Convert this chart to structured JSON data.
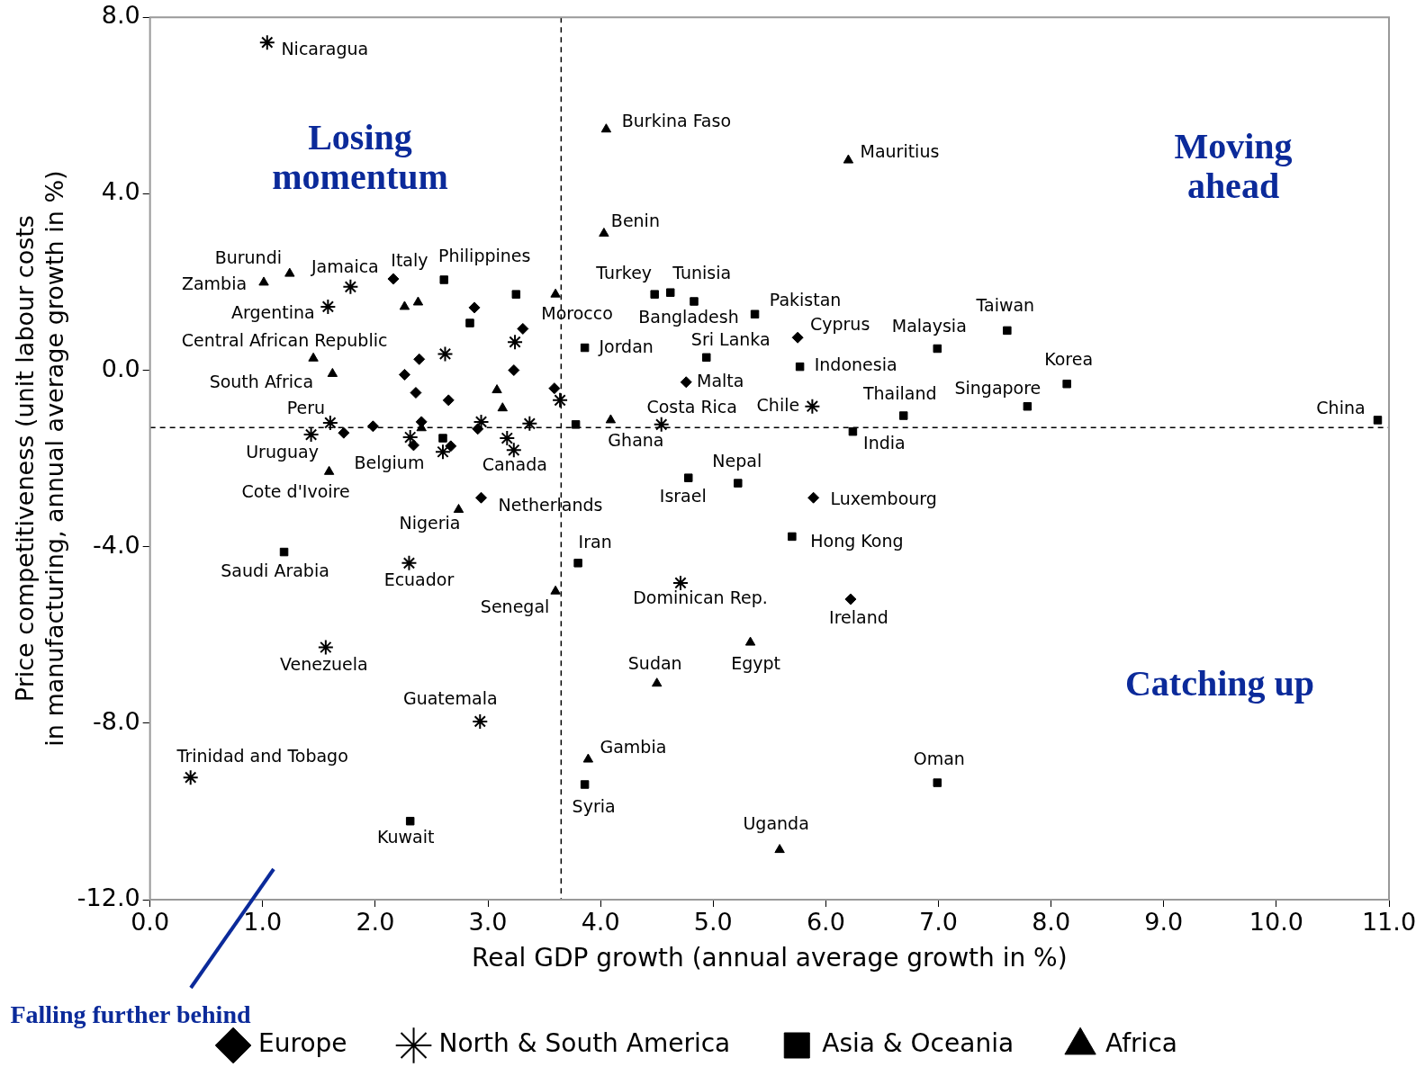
{
  "chart_data": {
    "type": "scatter",
    "xlabel": "Real GDP growth (annual average growth in %)",
    "ylabel": "Price competitiveness (unit labour costs\nin manufacturing, annual average growth in %)",
    "xlim": [
      0,
      11
    ],
    "ylim": [
      -12,
      8
    ],
    "xticks": [
      {
        "value": 0,
        "label": "0.0"
      },
      {
        "value": 1,
        "label": "1.0"
      },
      {
        "value": 2,
        "label": "2.0"
      },
      {
        "value": 3,
        "label": "3.0"
      },
      {
        "value": 4,
        "label": "4.0"
      },
      {
        "value": 5,
        "label": "5.0"
      },
      {
        "value": 6,
        "label": "6.0"
      },
      {
        "value": 7,
        "label": "7.0"
      },
      {
        "value": 8,
        "label": "8.0"
      },
      {
        "value": 9,
        "label": "9.0"
      },
      {
        "value": 10,
        "label": "10.0"
      },
      {
        "value": 11,
        "label": "11.0"
      }
    ],
    "yticks": [
      {
        "value": -12,
        "label": "-12.0"
      },
      {
        "value": -8,
        "label": "-8.0"
      },
      {
        "value": -4,
        "label": "-4.0"
      },
      {
        "value": 0,
        "label": "0.0"
      },
      {
        "value": 4,
        "label": "4.0"
      },
      {
        "value": 8,
        "label": "8.0"
      }
    ],
    "legend": "bottom",
    "grid": false,
    "ref_lines": [
      {
        "axis": "x",
        "value": 3.65,
        "label": null,
        "color": "#000000",
        "line_style": "dashed"
      },
      {
        "axis": "y",
        "value": -1.3,
        "label": null,
        "color": "#000000",
        "line_style": "dashed"
      }
    ],
    "series": [
      {
        "name": "Europe",
        "color": "#000000",
        "marker": "diamond",
        "x": [
          2.16,
          2.88,
          3.31,
          2.39,
          2.26,
          3.23,
          2.36,
          2.65,
          3.59,
          1.98,
          1.72,
          2.41,
          2.91,
          2.34,
          2.67,
          2.94,
          4.76,
          5.75,
          5.89,
          6.22
        ],
        "values": [
          2.07,
          1.42,
          0.94,
          0.25,
          -0.1,
          0.0,
          -0.51,
          -0.68,
          -0.41,
          -1.27,
          -1.42,
          -1.17,
          -1.33,
          -1.7,
          -1.72,
          -2.89,
          -0.27,
          0.74,
          -2.89,
          -5.19
        ]
      },
      {
        "name": "North & South America",
        "color": "#000000",
        "marker": "cross",
        "x": [
          1.04,
          1.78,
          1.58,
          2.62,
          3.24,
          3.64,
          1.6,
          1.43,
          2.94,
          3.37,
          3.17,
          3.23,
          2.6,
          2.31,
          4.54,
          5.88,
          2.3,
          4.71,
          1.56,
          2.93,
          0.36
        ],
        "values": [
          7.43,
          1.89,
          1.44,
          0.37,
          0.64,
          -0.68,
          -1.19,
          -1.46,
          -1.17,
          -1.21,
          -1.54,
          -1.81,
          -1.85,
          -1.52,
          -1.23,
          -0.82,
          -4.37,
          -4.82,
          -6.28,
          -7.96,
          -9.23
        ]
      },
      {
        "name": "Asia & Oceania",
        "color": "#000000",
        "marker": "square",
        "x": [
          2.61,
          3.25,
          2.84,
          4.48,
          4.62,
          4.83,
          5.37,
          3.86,
          4.94,
          5.77,
          6.99,
          7.61,
          8.14,
          7.79,
          6.69,
          6.24,
          10.9,
          3.78,
          2.6,
          4.78,
          5.22,
          5.7,
          3.8,
          1.19,
          6.99,
          3.86,
          2.31
        ],
        "values": [
          2.05,
          1.72,
          1.07,
          1.72,
          1.76,
          1.56,
          1.27,
          0.51,
          0.29,
          0.08,
          0.49,
          0.9,
          -0.31,
          -0.82,
          -1.03,
          -1.39,
          -1.13,
          -1.23,
          -1.54,
          -2.44,
          -2.56,
          -3.77,
          -4.37,
          -4.12,
          -9.35,
          -9.39,
          -10.22
        ]
      },
      {
        "name": "Africa",
        "color": "#000000",
        "marker": "triangle",
        "x": [
          4.05,
          6.2,
          4.03,
          1.01,
          1.24,
          2.26,
          2.38,
          3.6,
          1.45,
          1.62,
          3.08,
          3.13,
          4.09,
          2.41,
          1.59,
          2.74,
          3.6,
          5.33,
          4.5,
          3.89,
          5.59
        ],
        "values": [
          5.46,
          4.76,
          3.1,
          1.99,
          2.19,
          1.44,
          1.54,
          1.72,
          0.27,
          -0.08,
          -0.45,
          -0.86,
          -1.13,
          -1.31,
          -2.3,
          -3.16,
          -5.01,
          -6.17,
          -7.1,
          -8.82,
          -10.87
        ]
      }
    ],
    "annotations": [
      "Losing\nmomentum",
      "Moving\nahead",
      "Catching up",
      "Falling further behind",
      {
        "text": "Nicaragua",
        "x": 1.04,
        "y": 7.43
      },
      {
        "text": "Burkina Faso",
        "x": 4.05,
        "y": 5.46
      },
      {
        "text": "Mauritius",
        "x": 6.2,
        "y": 4.76
      },
      {
        "text": "Benin",
        "x": 4.03,
        "y": 3.1
      },
      {
        "text": "Burundi",
        "x": 1.24,
        "y": 2.19
      },
      {
        "text": "Jamaica",
        "x": 1.78,
        "y": 1.89
      },
      {
        "text": "Italy",
        "x": 2.16,
        "y": 2.07
      },
      {
        "text": "Philippines",
        "x": 2.61,
        "y": 2.05
      },
      {
        "text": "Zambia",
        "x": 1.01,
        "y": 1.99
      },
      {
        "text": "Turkey",
        "x": 4.48,
        "y": 1.72
      },
      {
        "text": "Tunisia",
        "x": 4.62,
        "y": 1.76
      },
      {
        "text": "Argentina",
        "x": 1.58,
        "y": 1.44
      },
      {
        "text": "Morocco",
        "x": 3.6,
        "y": 1.72
      },
      {
        "text": "Pakistan",
        "x": 5.37,
        "y": 1.27
      },
      {
        "text": "Bangladesh",
        "x": 4.83,
        "y": 1.56
      },
      {
        "text": "Taiwan",
        "x": 7.61,
        "y": 0.9
      },
      {
        "text": "Cyprus",
        "x": 5.75,
        "y": 0.74
      },
      {
        "text": "Malaysia",
        "x": 6.99,
        "y": 0.49
      },
      {
        "text": "Central African Republic",
        "x": 1.45,
        "y": 0.27
      },
      {
        "text": "Jordan",
        "x": 3.86,
        "y": 0.51
      },
      {
        "text": "Sri Lanka",
        "x": 4.94,
        "y": 0.29
      },
      {
        "text": "Indonesia",
        "x": 5.77,
        "y": 0.08
      },
      {
        "text": "Korea",
        "x": 8.14,
        "y": -0.31
      },
      {
        "text": "Malta",
        "x": 4.76,
        "y": -0.27
      },
      {
        "text": "South Africa",
        "x": 1.62,
        "y": -0.08
      },
      {
        "text": "Singapore",
        "x": 7.79,
        "y": -0.82
      },
      {
        "text": "Thailand",
        "x": 6.69,
        "y": -1.03
      },
      {
        "text": "Costa Rica",
        "x": 4.54,
        "y": -1.23
      },
      {
        "text": "Chile",
        "x": 5.88,
        "y": -0.82
      },
      {
        "text": "China",
        "x": 10.9,
        "y": -1.13
      },
      {
        "text": "Peru",
        "x": 1.6,
        "y": -1.19
      },
      {
        "text": "Ghana",
        "x": 4.09,
        "y": -1.13
      },
      {
        "text": "India",
        "x": 6.24,
        "y": -1.39
      },
      {
        "text": "Uruguay",
        "x": 1.43,
        "y": -1.46
      },
      {
        "text": "Belgium",
        "x": 2.34,
        "y": -1.7
      },
      {
        "text": "Canada",
        "x": 3.23,
        "y": -1.81
      },
      {
        "text": "Nepal",
        "x": 5.22,
        "y": -2.56
      },
      {
        "text": "Cote d'Ivoire",
        "x": 1.59,
        "y": -2.3
      },
      {
        "text": "Israel",
        "x": 4.78,
        "y": -2.44
      },
      {
        "text": "Luxembourg",
        "x": 5.89,
        "y": -2.89
      },
      {
        "text": "Netherlands",
        "x": 2.94,
        "y": -2.89
      },
      {
        "text": "Nigeria",
        "x": 2.74,
        "y": -3.16
      },
      {
        "text": "Iran",
        "x": 3.8,
        "y": -4.37
      },
      {
        "text": "Hong Kong",
        "x": 5.7,
        "y": -3.77
      },
      {
        "text": "Saudi Arabia",
        "x": 1.19,
        "y": -4.12
      },
      {
        "text": "Ecuador",
        "x": 2.3,
        "y": -4.37
      },
      {
        "text": "Dominican Rep.",
        "x": 4.71,
        "y": -4.82
      },
      {
        "text": "Senegal",
        "x": 3.6,
        "y": -5.01
      },
      {
        "text": "Ireland",
        "x": 6.22,
        "y": -5.19
      },
      {
        "text": "Sudan",
        "x": 4.5,
        "y": -7.1
      },
      {
        "text": "Egypt",
        "x": 5.33,
        "y": -6.17
      },
      {
        "text": "Venezuela",
        "x": 1.56,
        "y": -6.28
      },
      {
        "text": "Guatemala",
        "x": 2.93,
        "y": -7.96
      },
      {
        "text": "Trinidad and Tobago",
        "x": 0.36,
        "y": -9.23
      },
      {
        "text": "Gambia",
        "x": 3.89,
        "y": -8.82
      },
      {
        "text": "Oman",
        "x": 6.99,
        "y": -9.35
      },
      {
        "text": "Syria",
        "x": 3.86,
        "y": -9.39
      },
      {
        "text": "Uganda",
        "x": 5.59,
        "y": -10.87
      },
      {
        "text": "Kuwait",
        "x": 2.31,
        "y": -10.22
      }
    ]
  }
}
